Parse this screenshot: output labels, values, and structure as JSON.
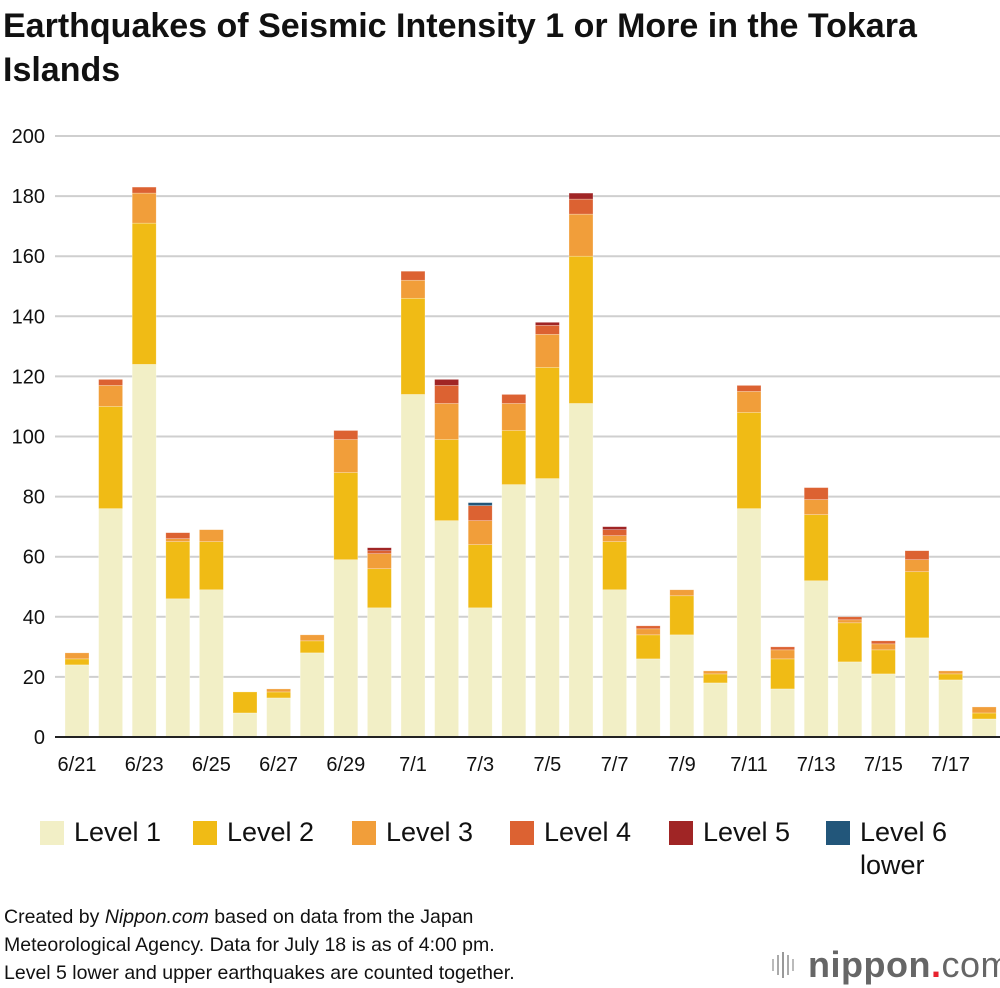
{
  "chart_data": {
    "type": "bar",
    "stacked": true,
    "title": "Earthquakes of Seismic Intensity 1 or More in the Tokara Islands",
    "ylim": [
      0,
      200
    ],
    "yticks": [
      0,
      20,
      40,
      60,
      80,
      100,
      120,
      140,
      160,
      180,
      200
    ],
    "grid": true,
    "legend_position": "bottom",
    "categories": [
      "6/21",
      "6/22",
      "6/23",
      "6/24",
      "6/25",
      "6/26",
      "6/27",
      "6/28",
      "6/29",
      "6/30",
      "7/1",
      "7/2",
      "7/3",
      "7/4",
      "7/5",
      "7/6",
      "7/7",
      "7/8",
      "7/9",
      "7/10",
      "7/11",
      "7/12",
      "7/13",
      "7/14",
      "7/15",
      "7/16",
      "7/17",
      "7/18"
    ],
    "tick_labels": [
      "6/21",
      "6/23",
      "6/25",
      "6/27",
      "6/29",
      "7/1",
      "7/3",
      "7/5",
      "7/7",
      "7/9",
      "7/11",
      "7/13",
      "7/15",
      "7/17"
    ],
    "series": [
      {
        "name": "Level 1",
        "color": "#f2efc6",
        "values": [
          24,
          76,
          124,
          46,
          49,
          8,
          13,
          28,
          59,
          43,
          114,
          72,
          43,
          84,
          86,
          111,
          49,
          26,
          34,
          18,
          76,
          16,
          52,
          25,
          21,
          33,
          19,
          6
        ]
      },
      {
        "name": "Level 2",
        "color": "#f0bb15",
        "values": [
          2,
          34,
          47,
          19,
          16,
          7,
          2,
          4,
          29,
          13,
          32,
          27,
          21,
          18,
          37,
          49,
          16,
          8,
          13,
          3,
          32,
          10,
          22,
          13,
          8,
          22,
          2,
          2
        ]
      },
      {
        "name": "Level 3",
        "color": "#f19e3a",
        "values": [
          2,
          7,
          10,
          1,
          4,
          0,
          1,
          2,
          11,
          5,
          6,
          12,
          8,
          9,
          11,
          14,
          2,
          2,
          2,
          1,
          7,
          3,
          5,
          1,
          2,
          4,
          1,
          2
        ]
      },
      {
        "name": "Level 4",
        "color": "#dc6232",
        "values": [
          0,
          2,
          2,
          2,
          0,
          0,
          0,
          0,
          3,
          1,
          3,
          6,
          5,
          3,
          3,
          5,
          2,
          1,
          0,
          0,
          2,
          1,
          4,
          1,
          1,
          3,
          0,
          0
        ]
      },
      {
        "name": "Level 5",
        "color": "#a02525",
        "values": [
          0,
          0,
          0,
          0,
          0,
          0,
          0,
          0,
          0,
          1,
          0,
          2,
          0,
          0,
          1,
          2,
          1,
          0,
          0,
          0,
          0,
          0,
          0,
          0,
          0,
          0,
          0,
          0
        ]
      },
      {
        "name": "Level 6 lower",
        "color": "#22567a",
        "values": [
          0,
          0,
          0,
          0,
          0,
          0,
          0,
          0,
          0,
          0,
          0,
          0,
          1,
          0,
          0,
          0,
          0,
          0,
          0,
          0,
          0,
          0,
          0,
          0,
          0,
          0,
          0,
          0
        ]
      }
    ]
  },
  "legend": [
    {
      "label": "Level 1",
      "label2": "",
      "color": "#f2efc6"
    },
    {
      "label": "Level 2",
      "label2": "",
      "color": "#f0bb15"
    },
    {
      "label": "Level 3",
      "label2": "",
      "color": "#f19e3a"
    },
    {
      "label": "Level 4",
      "label2": "",
      "color": "#dc6232"
    },
    {
      "label": "Level 5",
      "label2": "",
      "color": "#a02525"
    },
    {
      "label": "Level 6",
      "label2": "lower",
      "color": "#22567a"
    }
  ],
  "footer": {
    "prefix": "Created by ",
    "source_name": "Nippon.com",
    "line1_rest": " based on data from the Japan",
    "line2": "Meteorological Agency. Data for July 18 is as of 4:00 pm.",
    "line3": "Level 5 lower and upper earthquakes are counted together."
  },
  "logo": {
    "text": "nippon",
    "dot": ".",
    "suffix": "com",
    "accent": "#e8222e"
  }
}
